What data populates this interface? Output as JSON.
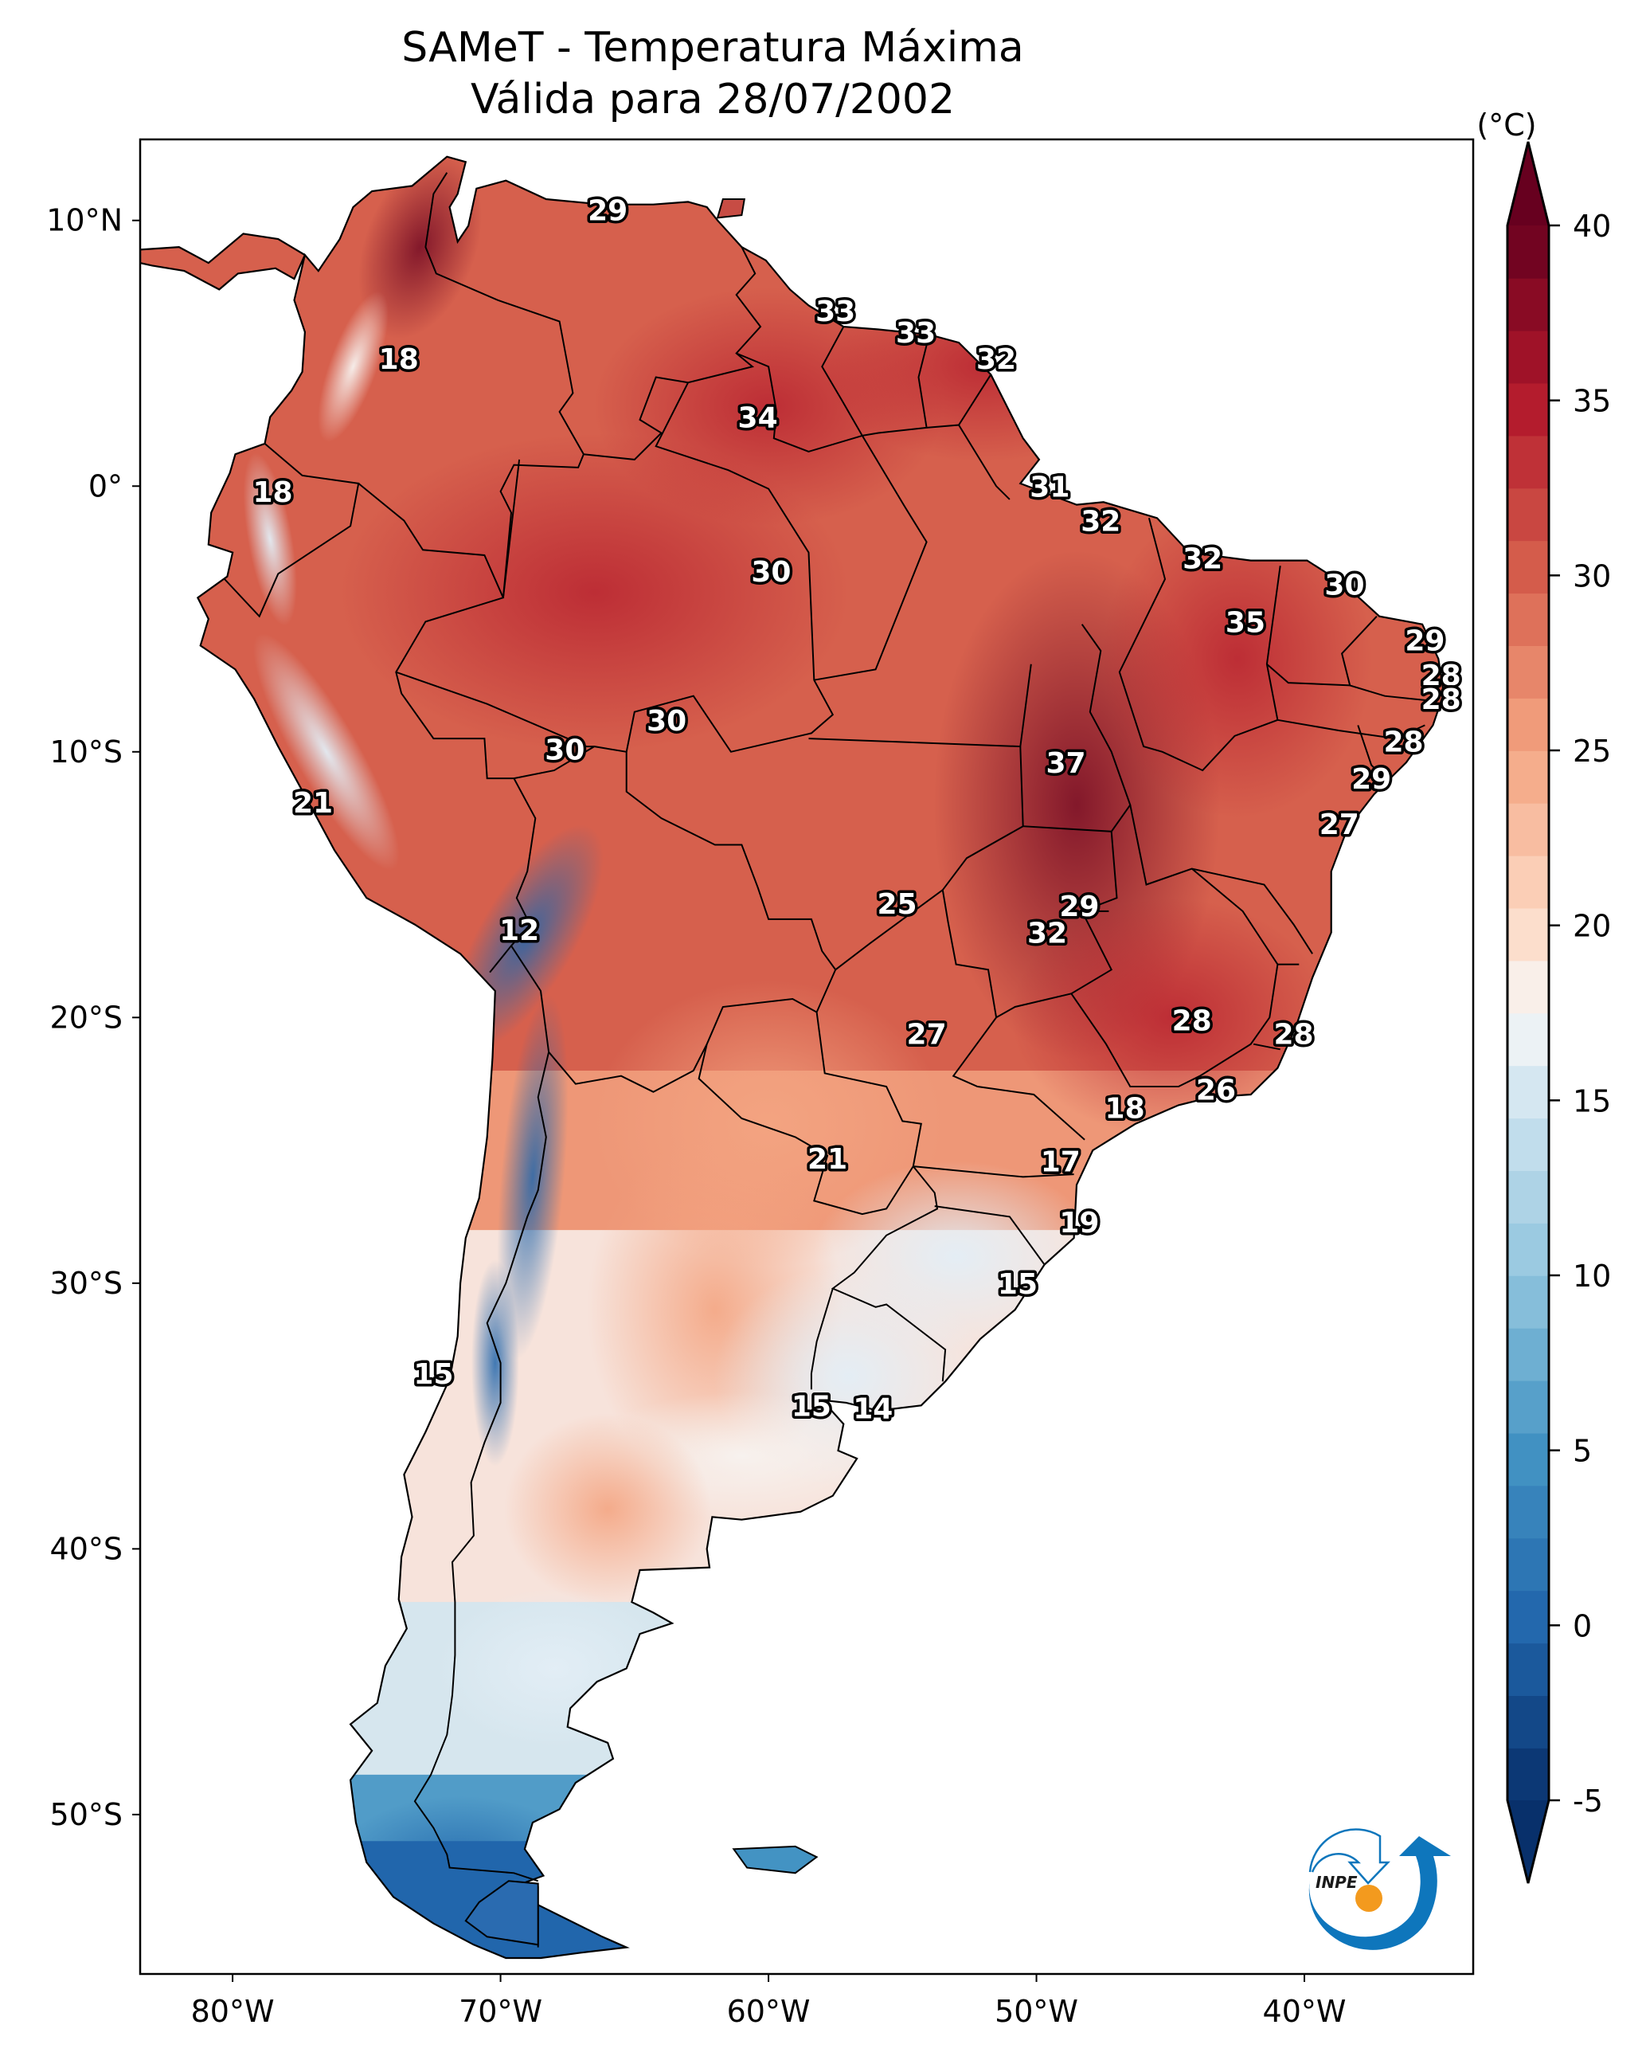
{
  "title": {
    "line1": "SAMeT - Temperatura Máxima",
    "line2": "Válida para 28/07/2002"
  },
  "chart_data": {
    "type": "heatmap",
    "title": "SAMeT - Temperatura Máxima",
    "subtitle": "Válida para 28/07/2002",
    "variable": "Maximum temperature",
    "region": "South America",
    "date": "28/07/2002",
    "extent": {
      "lon": [
        -83.45,
        -33.7
      ],
      "lat": [
        -56.0,
        13.05
      ]
    },
    "x_ticks": [
      {
        "lon": -80,
        "label": "80°W"
      },
      {
        "lon": -70,
        "label": "70°W"
      },
      {
        "lon": -60,
        "label": "60°W"
      },
      {
        "lon": -50,
        "label": "50°W"
      },
      {
        "lon": -40,
        "label": "40°W"
      }
    ],
    "y_ticks": [
      {
        "lat": 10,
        "label": "10°N"
      },
      {
        "lat": 0,
        "label": "0°"
      },
      {
        "lat": -10,
        "label": "10°S"
      },
      {
        "lat": -20,
        "label": "20°S"
      },
      {
        "lat": -30,
        "label": "30°S"
      },
      {
        "lat": -40,
        "label": "40°S"
      },
      {
        "lat": -50,
        "label": "50°S"
      }
    ],
    "colorbar": {
      "unit_label": "(°C)",
      "range": [
        -5,
        40
      ],
      "extend": "both",
      "ticks": [
        -5,
        0,
        5,
        10,
        15,
        20,
        25,
        30,
        35,
        40
      ],
      "tick_labels": [
        "-5",
        "0",
        "5",
        "10",
        "15",
        "20",
        "25",
        "30",
        "35",
        "40"
      ],
      "colormap": "RdBu_r",
      "stops": [
        {
          "value": -5,
          "color": "#08306b"
        },
        {
          "value": 0,
          "color": "#2166ac"
        },
        {
          "value": 5,
          "color": "#4393c3"
        },
        {
          "value": 10,
          "color": "#92c5de"
        },
        {
          "value": 15,
          "color": "#d1e5f0"
        },
        {
          "value": 17.5,
          "color": "#f7f7f7"
        },
        {
          "value": 20,
          "color": "#fddbc7"
        },
        {
          "value": 25,
          "color": "#f4a582"
        },
        {
          "value": 30,
          "color": "#d6604d"
        },
        {
          "value": 35,
          "color": "#b2182b"
        },
        {
          "value": 40,
          "color": "#67001f"
        }
      ]
    },
    "point_labels": [
      {
        "lon": -66.0,
        "lat": 10.4,
        "value": 29
      },
      {
        "lon": -73.8,
        "lat": 4.8,
        "value": 18
      },
      {
        "lon": -78.5,
        "lat": -0.2,
        "value": 18
      },
      {
        "lon": -57.5,
        "lat": 6.6,
        "value": 33
      },
      {
        "lon": -54.5,
        "lat": 5.8,
        "value": 33
      },
      {
        "lon": -51.5,
        "lat": 4.8,
        "value": 32
      },
      {
        "lon": -60.4,
        "lat": 2.6,
        "value": 34
      },
      {
        "lon": -49.5,
        "lat": 0.0,
        "value": 31
      },
      {
        "lon": -47.6,
        "lat": -1.3,
        "value": 32
      },
      {
        "lon": -59.9,
        "lat": -3.2,
        "value": 30
      },
      {
        "lon": -43.8,
        "lat": -2.7,
        "value": 32
      },
      {
        "lon": -38.5,
        "lat": -3.7,
        "value": 30
      },
      {
        "lon": -42.2,
        "lat": -5.1,
        "value": 35
      },
      {
        "lon": -35.5,
        "lat": -5.8,
        "value": 29
      },
      {
        "lon": -34.9,
        "lat": -7.1,
        "value": 28
      },
      {
        "lon": -34.9,
        "lat": -8.0,
        "value": 28
      },
      {
        "lon": -36.3,
        "lat": -9.6,
        "value": 28
      },
      {
        "lon": -37.5,
        "lat": -11.0,
        "value": 29
      },
      {
        "lon": -48.9,
        "lat": -10.4,
        "value": 37
      },
      {
        "lon": -67.6,
        "lat": -9.9,
        "value": 30
      },
      {
        "lon": -63.8,
        "lat": -8.8,
        "value": 30
      },
      {
        "lon": -38.7,
        "lat": -12.7,
        "value": 27
      },
      {
        "lon": -77.0,
        "lat": -11.9,
        "value": 21
      },
      {
        "lon": -55.2,
        "lat": -15.7,
        "value": 25
      },
      {
        "lon": -48.4,
        "lat": -15.8,
        "value": 29
      },
      {
        "lon": -49.6,
        "lat": -16.8,
        "value": 32
      },
      {
        "lon": -69.3,
        "lat": -16.7,
        "value": 12
      },
      {
        "lon": -44.2,
        "lat": -20.1,
        "value": 28
      },
      {
        "lon": -40.4,
        "lat": -20.6,
        "value": 28
      },
      {
        "lon": -54.1,
        "lat": -20.6,
        "value": 27
      },
      {
        "lon": -43.3,
        "lat": -22.7,
        "value": 26
      },
      {
        "lon": -46.7,
        "lat": -23.4,
        "value": 18
      },
      {
        "lon": -57.8,
        "lat": -25.3,
        "value": 21
      },
      {
        "lon": -49.1,
        "lat": -25.4,
        "value": 17
      },
      {
        "lon": -48.4,
        "lat": -27.7,
        "value": 19
      },
      {
        "lon": -50.7,
        "lat": -30.0,
        "value": 15
      },
      {
        "lon": -72.5,
        "lat": -33.4,
        "value": 15
      },
      {
        "lon": -58.4,
        "lat": -34.6,
        "value": 15
      },
      {
        "lon": -56.1,
        "lat": -34.7,
        "value": 14
      }
    ]
  },
  "logo": {
    "text": "INPE",
    "colors": {
      "blue": "#0e76bc",
      "orange": "#f39a1e"
    }
  }
}
